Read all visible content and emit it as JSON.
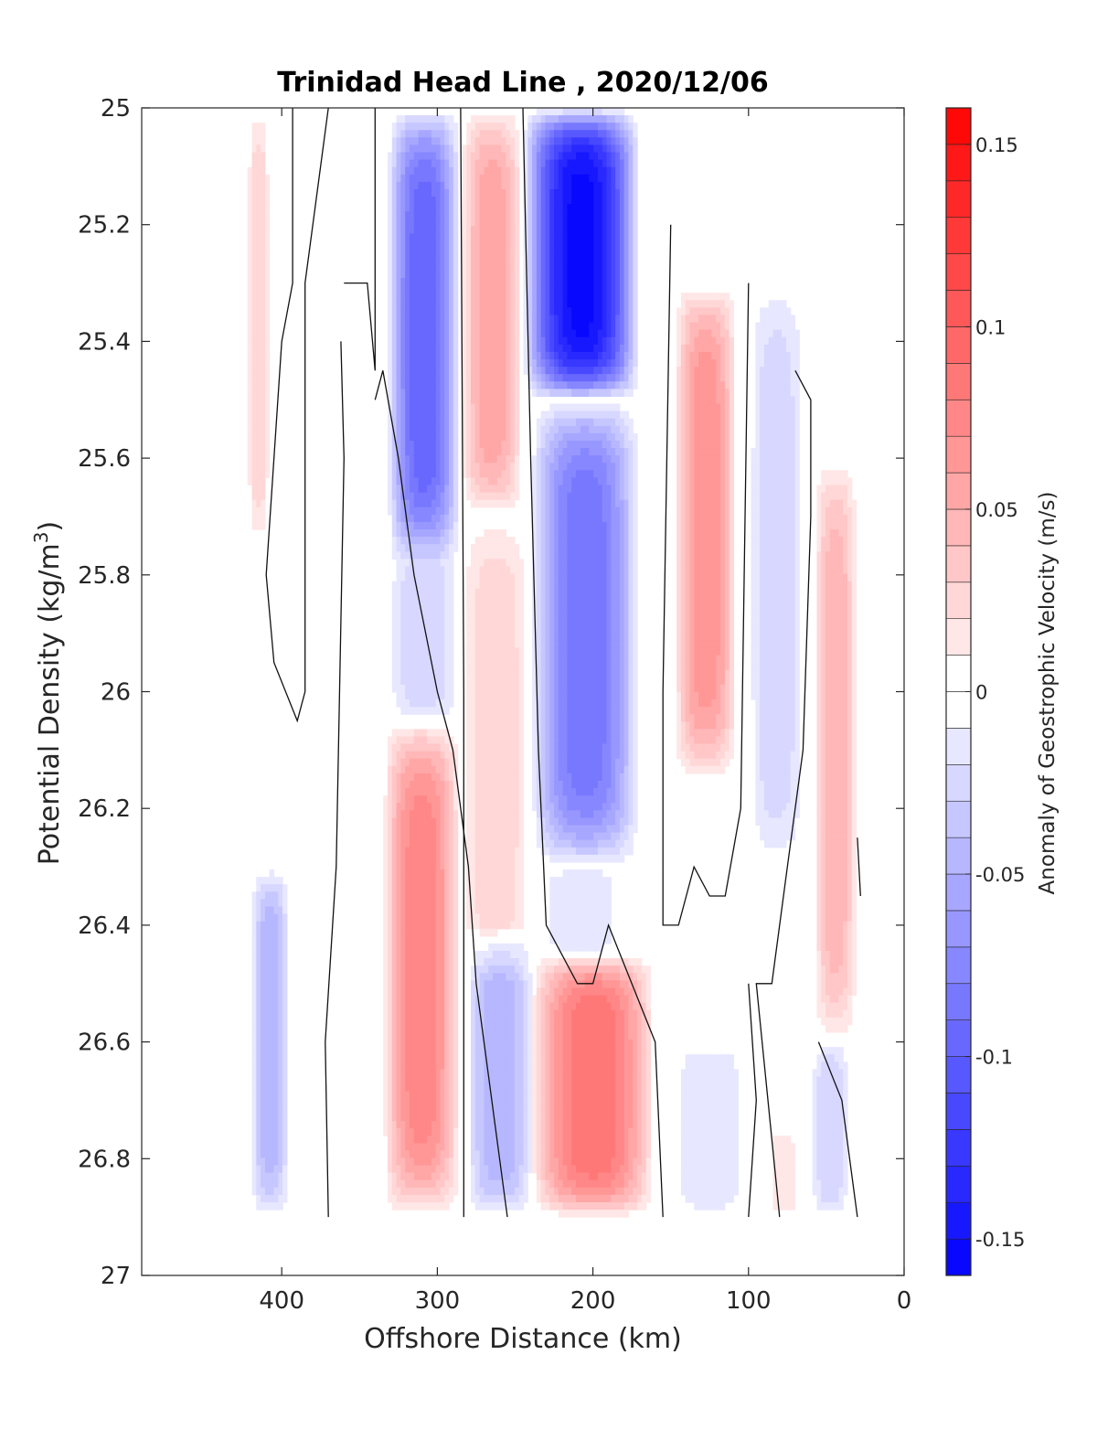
{
  "chart_data": {
    "type": "heatmap",
    "title": "Trinidad Head Line , 2020/12/06",
    "xlabel": "Offshore Distance (km)",
    "ylabel": "Potential Density (kg/m3)",
    "ylabel_main": "Potential Density (kg/m",
    "ylabel_sup": "3",
    "ylabel_close": ")",
    "xlim": [
      490,
      0
    ],
    "ylim": [
      27,
      25
    ],
    "x_reversed": true,
    "y_reversed": true,
    "x_ticks": [
      400,
      300,
      200,
      100,
      0
    ],
    "x_tick_labels": [
      "400",
      "300",
      "200",
      "100",
      "0"
    ],
    "y_ticks": [
      25,
      25.2,
      25.4,
      25.6,
      25.8,
      26,
      26.2,
      26.4,
      26.6,
      26.8,
      27
    ],
    "y_tick_labels": [
      "25",
      "25.2",
      "25.4",
      "25.6",
      "25.8",
      "26",
      "26.2",
      "26.4",
      "26.6",
      "26.8",
      "27"
    ],
    "colorbar": {
      "label": "Anomaly of Geostrophic Velocity (m/s)",
      "range": [
        -0.16,
        0.16
      ],
      "levels": 32,
      "ticks": [
        0.15,
        0.1,
        0.05,
        0,
        -0.05,
        -0.1,
        -0.15
      ],
      "tick_labels": [
        "0.15",
        "0.1",
        "0.05",
        "0",
        "-0.05",
        "-0.1",
        "-0.15"
      ],
      "colormap": "blue-white-red",
      "positive_color": "#ff0000",
      "negative_color": "#0000ff",
      "zero_color": "#ffffff"
    },
    "grid": false,
    "features": [
      {
        "x_range": [
          422,
          408
        ],
        "y_range": [
          25.0,
          25.75
        ],
        "peak": 0.03
      },
      {
        "x_range": [
          332,
          285
        ],
        "y_range": [
          25.0,
          25.78
        ],
        "peak": -0.1
      },
      {
        "x_range": [
          332,
          285
        ],
        "y_range": [
          25.75,
          26.05
        ],
        "peak": -0.03
      },
      {
        "x_range": [
          285,
          245
        ],
        "y_range": [
          25.0,
          25.7
        ],
        "peak": 0.06
      },
      {
        "x_range": [
          285,
          240
        ],
        "y_range": [
          25.7,
          26.5
        ],
        "peak": 0.03
      },
      {
        "x_range": [
          245,
          170
        ],
        "y_range": [
          25.0,
          25.5
        ],
        "peak": -0.155
      },
      {
        "x_range": [
          240,
          170
        ],
        "y_range": [
          25.5,
          26.3
        ],
        "peak": -0.09
      },
      {
        "x_range": [
          235,
          180
        ],
        "y_range": [
          26.3,
          26.45
        ],
        "peak": -0.02
      },
      {
        "x_range": [
          148,
          107
        ],
        "y_range": [
          25.3,
          26.15
        ],
        "peak": 0.07
      },
      {
        "x_range": [
          100,
          64
        ],
        "y_range": [
          25.3,
          26.3
        ],
        "peak": -0.03
      },
      {
        "x_range": [
          58,
          30
        ],
        "y_range": [
          25.6,
          26.6
        ],
        "peak": 0.05
      },
      {
        "x_range": [
          420,
          395
        ],
        "y_range": [
          26.3,
          26.9
        ],
        "peak": -0.05
      },
      {
        "x_range": [
          335,
          285
        ],
        "y_range": [
          26.05,
          26.9
        ],
        "peak": 0.08
      },
      {
        "x_range": [
          282,
          238
        ],
        "y_range": [
          26.4,
          26.9
        ],
        "peak": -0.05
      },
      {
        "x_range": [
          240,
          160
        ],
        "y_range": [
          26.45,
          26.9
        ],
        "peak": 0.09
      },
      {
        "x_range": [
          150,
          100
        ],
        "y_range": [
          26.6,
          26.9
        ],
        "peak": -0.02
      },
      {
        "x_range": [
          88,
          68
        ],
        "y_range": [
          26.75,
          26.9
        ],
        "peak": 0.02
      },
      {
        "x_range": [
          60,
          35
        ],
        "y_range": [
          26.6,
          26.9
        ],
        "peak": -0.03
      }
    ],
    "zero_contours": [
      [
        [
          393,
          25.0
        ],
        [
          393,
          25.3
        ],
        [
          400,
          25.4
        ],
        [
          410,
          25.8
        ],
        [
          405,
          25.95
        ],
        [
          390,
          26.05
        ],
        [
          385,
          26.0
        ],
        [
          385,
          25.3
        ],
        [
          370,
          25.0
        ]
      ],
      [
        [
          360,
          25.3
        ],
        [
          345,
          25.3
        ],
        [
          340,
          25.45
        ],
        [
          340,
          25.0
        ]
      ],
      [
        [
          362,
          25.4
        ],
        [
          360,
          25.6
        ],
        [
          365,
          26.3
        ],
        [
          372,
          26.6
        ],
        [
          370,
          26.9
        ]
      ],
      [
        [
          340,
          25.5
        ],
        [
          335,
          25.45
        ],
        [
          325,
          25.6
        ],
        [
          315,
          25.8
        ],
        [
          300,
          26.0
        ],
        [
          290,
          26.1
        ],
        [
          280,
          26.3
        ],
        [
          275,
          26.5
        ],
        [
          255,
          26.9
        ]
      ],
      [
        [
          285,
          25.0
        ],
        [
          283,
          26.0
        ],
        [
          283,
          26.9
        ]
      ],
      [
        [
          245,
          25.0
        ],
        [
          240,
          25.6
        ],
        [
          235,
          26.1
        ],
        [
          230,
          26.4
        ],
        [
          210,
          26.5
        ],
        [
          200,
          26.5
        ],
        [
          190,
          26.4
        ],
        [
          175,
          26.5
        ],
        [
          160,
          26.6
        ],
        [
          155,
          26.9
        ]
      ],
      [
        [
          150,
          25.2
        ],
        [
          155,
          26.0
        ],
        [
          155,
          26.4
        ],
        [
          145,
          26.4
        ],
        [
          135,
          26.3
        ],
        [
          125,
          26.35
        ],
        [
          115,
          26.35
        ],
        [
          105,
          26.2
        ],
        [
          100,
          25.3
        ]
      ],
      [
        [
          100,
          26.5
        ],
        [
          95,
          26.7
        ],
        [
          100,
          26.9
        ]
      ],
      [
        [
          70,
          25.45
        ],
        [
          60,
          25.5
        ],
        [
          60,
          25.7
        ],
        [
          65,
          26.1
        ],
        [
          75,
          26.3
        ],
        [
          85,
          26.5
        ],
        [
          95,
          26.5
        ],
        [
          80,
          26.9
        ]
      ],
      [
        [
          55,
          26.6
        ],
        [
          40,
          26.7
        ],
        [
          30,
          26.9
        ]
      ],
      [
        [
          30,
          26.25
        ],
        [
          28,
          26.35
        ]
      ]
    ]
  }
}
